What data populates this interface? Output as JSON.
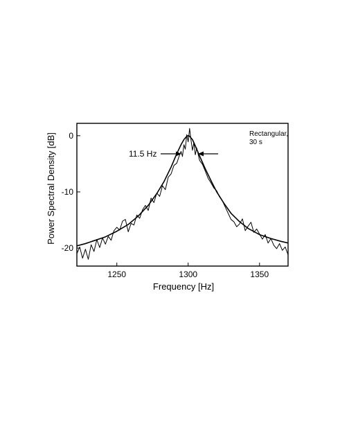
{
  "chart_data": {
    "type": "line",
    "xlabel": "Frequency [Hz]",
    "ylabel": "Power Spectral Density [dB]",
    "xlim": [
      1222,
      1370
    ],
    "ylim": [
      -23.2,
      2.2
    ],
    "x_ticks": [
      1250,
      1300,
      1350
    ],
    "y_ticks": [
      0,
      -10,
      -20
    ],
    "x_tick_labels": [
      "1250",
      "1300",
      "1350"
    ],
    "y_tick_labels": [
      "0",
      "-10",
      "-20"
    ],
    "grid": false,
    "annotations": {
      "width_label": "11.5 Hz",
      "window_label_line1": "Rectangular,",
      "window_label_line2": "30 s"
    },
    "series": [
      {
        "values_description_x": "frequency",
        "x": [
          1222,
          1228,
          1235,
          1242,
          1250,
          1258,
          1265,
          1272,
          1278,
          1283,
          1288,
          1292,
          1295,
          1297,
          1299,
          1300,
          1301,
          1303,
          1305,
          1308,
          1312,
          1316,
          1320,
          1325,
          1330,
          1336,
          1342,
          1350,
          1358,
          1365,
          1370
        ],
        "y": [
          -19.6,
          -19.2,
          -18.6,
          -18.0,
          -17.0,
          -15.8,
          -14.3,
          -12.4,
          -10.3,
          -8.2,
          -5.6,
          -3.2,
          -1.6,
          -0.7,
          -0.1,
          0.0,
          -0.1,
          -0.7,
          -1.8,
          -3.6,
          -5.9,
          -8.0,
          -10.0,
          -12.0,
          -13.8,
          -15.3,
          -16.5,
          -17.6,
          -18.3,
          -18.8,
          -19.1
        ]
      },
      {
        "x": [
          1222,
          1224,
          1226,
          1228,
          1230,
          1232,
          1234,
          1236,
          1238,
          1240,
          1242,
          1244,
          1246,
          1248,
          1250,
          1252,
          1254,
          1256,
          1258,
          1260,
          1262,
          1264,
          1266,
          1268,
          1270,
          1272,
          1274,
          1276,
          1278,
          1280,
          1282,
          1284,
          1286,
          1288,
          1290,
          1292,
          1294,
          1295,
          1296,
          1297,
          1298,
          1299,
          1300,
          1301,
          1302,
          1303,
          1304,
          1305,
          1306,
          1308,
          1310,
          1312,
          1314,
          1316,
          1318,
          1320,
          1322,
          1324,
          1326,
          1328,
          1330,
          1332,
          1334,
          1336,
          1338,
          1340,
          1342,
          1344,
          1346,
          1348,
          1350,
          1352,
          1354,
          1356,
          1358,
          1360,
          1362,
          1364,
          1366,
          1368,
          1370
        ],
        "y": [
          -21.0,
          -19.8,
          -21.8,
          -20.2,
          -22.0,
          -19.4,
          -20.6,
          -18.5,
          -19.9,
          -18.2,
          -19.3,
          -17.9,
          -18.6,
          -16.9,
          -16.3,
          -16.8,
          -15.2,
          -14.9,
          -17.1,
          -15.6,
          -15.9,
          -14.1,
          -14.7,
          -13.2,
          -12.4,
          -13.3,
          -11.1,
          -11.9,
          -10.2,
          -10.8,
          -8.9,
          -9.6,
          -7.4,
          -6.8,
          -5.3,
          -4.9,
          -3.4,
          -2.8,
          -3.7,
          -1.6,
          -2.4,
          0.2,
          -1.1,
          1.3,
          -0.8,
          -2.6,
          -1.2,
          -3.4,
          -2.2,
          -4.4,
          -5.1,
          -6.3,
          -7.6,
          -8.4,
          -9.3,
          -9.8,
          -10.9,
          -11.6,
          -12.7,
          -13.8,
          -14.9,
          -15.3,
          -16.2,
          -15.7,
          -14.8,
          -16.9,
          -16.1,
          -15.4,
          -17.2,
          -16.6,
          -17.5,
          -18.4,
          -17.6,
          -19.1,
          -18.3,
          -19.5,
          -20.1,
          -19.2,
          -20.4,
          -19.8,
          -21.2
        ]
      }
    ]
  }
}
